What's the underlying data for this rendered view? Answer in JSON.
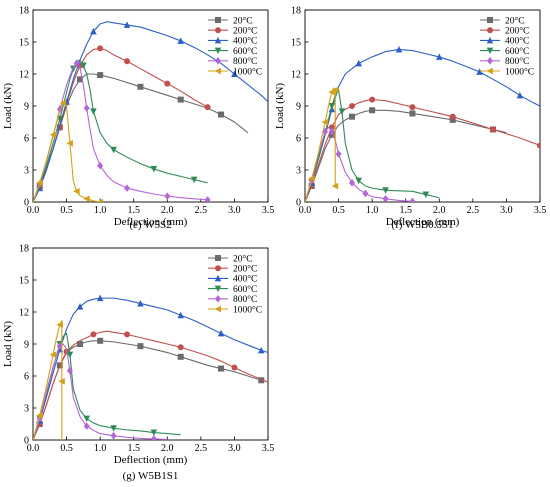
{
  "chart_data": [
    {
      "type": "line",
      "caption": "(e) W5S2",
      "xlabel": "Deflection (mm)",
      "ylabel": "Load (kN)",
      "xlim": [
        0,
        3.5
      ],
      "ylim": [
        0,
        18
      ],
      "xticks": [
        "0.0",
        "0.5",
        "1.0",
        "1.5",
        "2.0",
        "2.5",
        "3.0",
        "3.5"
      ],
      "yticks": [
        "0",
        "3",
        "6",
        "9",
        "12",
        "15",
        "18"
      ],
      "legend_position": "top-right",
      "series": [
        {
          "name": "20°C",
          "color": "#6b6b6b",
          "marker": "square",
          "x": [
            0,
            0.1,
            0.2,
            0.3,
            0.4,
            0.5,
            0.6,
            0.7,
            0.8,
            0.9,
            1.0,
            1.2,
            1.4,
            1.6,
            1.8,
            2.0,
            2.2,
            2.4,
            2.6,
            2.8,
            3.0,
            3.2
          ],
          "y": [
            0,
            1.5,
            3.2,
            5.0,
            7.0,
            9.0,
            10.5,
            11.5,
            12.0,
            12.0,
            11.9,
            11.6,
            11.2,
            10.8,
            10.4,
            10.0,
            9.6,
            9.2,
            8.8,
            8.2,
            7.5,
            6.5
          ]
        },
        {
          "name": "200°C",
          "color": "#c0504d",
          "marker": "circle",
          "x": [
            0,
            0.1,
            0.2,
            0.3,
            0.4,
            0.5,
            0.6,
            0.7,
            0.8,
            0.9,
            1.0,
            1.1,
            1.2,
            1.4,
            1.6,
            1.8,
            2.0,
            2.2,
            2.4,
            2.6
          ],
          "y": [
            0,
            1.3,
            3.0,
            5.0,
            7.0,
            9.2,
            11.2,
            12.8,
            13.8,
            14.3,
            14.4,
            14.2,
            13.8,
            13.2,
            12.5,
            11.8,
            11.1,
            10.4,
            9.6,
            8.9
          ]
        },
        {
          "name": "400°C",
          "color": "#2e5fc9",
          "marker": "triangle-up",
          "x": [
            0,
            0.1,
            0.2,
            0.3,
            0.4,
            0.5,
            0.6,
            0.7,
            0.8,
            0.9,
            1.0,
            1.1,
            1.2,
            1.4,
            1.6,
            1.8,
            2.0,
            2.2,
            2.4,
            2.6,
            2.8,
            3.0,
            3.2,
            3.4,
            3.5
          ],
          "y": [
            0,
            1.3,
            3.0,
            5.0,
            7.2,
            9.4,
            11.5,
            13.3,
            14.8,
            16.0,
            16.7,
            16.9,
            16.8,
            16.6,
            16.4,
            16.0,
            15.6,
            15.1,
            14.5,
            13.8,
            13.0,
            12.0,
            11.0,
            10.0,
            9.4
          ]
        },
        {
          "name": "600°C",
          "color": "#2e8b57",
          "marker": "triangle-down",
          "x": [
            0,
            0.1,
            0.2,
            0.3,
            0.4,
            0.5,
            0.55,
            0.6,
            0.65,
            0.7,
            0.75,
            0.8,
            0.85,
            0.9,
            1.0,
            1.1,
            1.2,
            1.4,
            1.6,
            1.8,
            2.0,
            2.2,
            2.4,
            2.6
          ],
          "y": [
            0,
            1.5,
            3.4,
            5.5,
            7.8,
            10.3,
            11.5,
            12.5,
            13.2,
            13.3,
            12.8,
            12.0,
            10.5,
            8.5,
            6.5,
            5.5,
            4.9,
            4.2,
            3.6,
            3.1,
            2.7,
            2.4,
            2.1,
            1.8
          ]
        },
        {
          "name": "800°C",
          "color": "#b566d6",
          "marker": "diamond",
          "x": [
            0,
            0.1,
            0.2,
            0.3,
            0.4,
            0.5,
            0.6,
            0.65,
            0.7,
            0.75,
            0.8,
            0.85,
            0.9,
            1.0,
            1.1,
            1.2,
            1.4,
            1.6,
            1.8,
            2.0,
            2.2,
            2.4,
            2.6
          ],
          "y": [
            0,
            1.7,
            3.8,
            6.2,
            8.7,
            11.0,
            12.6,
            13.0,
            12.6,
            11.0,
            8.8,
            6.8,
            5.0,
            3.4,
            2.5,
            1.9,
            1.3,
            1.0,
            0.75,
            0.55,
            0.4,
            0.3,
            0.2
          ]
        },
        {
          "name": "1000°C",
          "color": "#d4a017",
          "marker": "triangle-left",
          "x": [
            0,
            0.1,
            0.2,
            0.3,
            0.4,
            0.45,
            0.5,
            0.55,
            0.6,
            0.65,
            0.7,
            0.8,
            0.9,
            1.0
          ],
          "y": [
            0,
            1.8,
            3.9,
            6.3,
            8.5,
            9.3,
            9.0,
            5.5,
            2.0,
            1.0,
            0.6,
            0.3,
            0.1,
            0.0
          ]
        }
      ]
    },
    {
      "type": "line",
      "caption": "(f) W5B0.5S1",
      "xlabel": "Deflection (mm)",
      "ylabel": "Load (kN)",
      "xlim": [
        0,
        3.5
      ],
      "ylim": [
        0,
        18
      ],
      "xticks": [
        "0.0",
        "0.5",
        "1.0",
        "1.5",
        "2.0",
        "2.5",
        "3.0",
        "3.5"
      ],
      "yticks": [
        "0",
        "3",
        "6",
        "9",
        "12",
        "15",
        "18"
      ],
      "legend_position": "top-right",
      "series": [
        {
          "name": "20°C",
          "color": "#6b6b6b",
          "marker": "square",
          "x": [
            0,
            0.1,
            0.2,
            0.3,
            0.4,
            0.5,
            0.6,
            0.7,
            0.8,
            0.9,
            1.0,
            1.2,
            1.4,
            1.6,
            1.8,
            2.0,
            2.2,
            2.4,
            2.6,
            2.8,
            3.0
          ],
          "y": [
            0,
            1.5,
            3.2,
            5.0,
            6.3,
            7.2,
            7.7,
            8.0,
            8.3,
            8.5,
            8.6,
            8.6,
            8.5,
            8.3,
            8.1,
            7.9,
            7.7,
            7.4,
            7.1,
            6.8,
            6.5
          ]
        },
        {
          "name": "200°C",
          "color": "#c0504d",
          "marker": "circle",
          "x": [
            0,
            0.1,
            0.2,
            0.3,
            0.4,
            0.5,
            0.6,
            0.7,
            0.8,
            0.9,
            1.0,
            1.2,
            1.4,
            1.6,
            1.8,
            2.0,
            2.2,
            2.4,
            2.6,
            2.8,
            3.0,
            3.2,
            3.5
          ],
          "y": [
            0,
            1.6,
            3.5,
            5.4,
            7.0,
            8.2,
            8.7,
            9.0,
            9.3,
            9.5,
            9.6,
            9.5,
            9.2,
            8.9,
            8.6,
            8.3,
            8.0,
            7.6,
            7.2,
            6.8,
            6.4,
            6.0,
            5.3
          ]
        },
        {
          "name": "400°C",
          "color": "#2e5fc9",
          "marker": "triangle-up",
          "x": [
            0,
            0.1,
            0.2,
            0.3,
            0.4,
            0.5,
            0.6,
            0.8,
            1.0,
            1.2,
            1.4,
            1.6,
            1.8,
            2.0,
            2.2,
            2.4,
            2.6,
            2.8,
            3.0,
            3.2,
            3.4,
            3.5
          ],
          "y": [
            0,
            1.8,
            4.0,
            6.3,
            8.7,
            10.8,
            12.0,
            13.0,
            13.6,
            14.1,
            14.3,
            14.2,
            13.9,
            13.6,
            13.2,
            12.7,
            12.2,
            11.5,
            10.8,
            10.0,
            9.3,
            9.0
          ]
        },
        {
          "name": "600°C",
          "color": "#2e8b57",
          "marker": "triangle-down",
          "x": [
            0,
            0.1,
            0.2,
            0.3,
            0.4,
            0.45,
            0.5,
            0.55,
            0.6,
            0.7,
            0.8,
            0.9,
            1.0,
            1.2,
            1.4,
            1.6,
            1.8,
            2.0
          ],
          "y": [
            0,
            1.9,
            4.2,
            6.5,
            9.0,
            10.0,
            10.5,
            8.5,
            5.5,
            3.0,
            2.0,
            1.5,
            1.3,
            1.1,
            1.05,
            1.0,
            0.7,
            0.4
          ]
        },
        {
          "name": "800°C",
          "color": "#b566d6",
          "marker": "diamond",
          "x": [
            0,
            0.1,
            0.2,
            0.3,
            0.35,
            0.4,
            0.45,
            0.5,
            0.6,
            0.7,
            0.8,
            0.9,
            1.0,
            1.2,
            1.4,
            1.6
          ],
          "y": [
            0,
            2.0,
            4.5,
            6.6,
            7.0,
            6.6,
            5.8,
            4.5,
            2.8,
            1.8,
            1.2,
            0.8,
            0.5,
            0.3,
            0.15,
            0.05
          ]
        },
        {
          "name": "1000°C",
          "color": "#d4a017",
          "marker": "triangle-left",
          "x": [
            0,
            0.1,
            0.2,
            0.3,
            0.35,
            0.4,
            0.43,
            0.45,
            0.45,
            0.45
          ],
          "y": [
            0,
            2.2,
            4.6,
            7.5,
            9.0,
            10.3,
            10.7,
            10.5,
            6.0,
            1.5
          ]
        }
      ]
    },
    {
      "type": "line",
      "caption": "(g) W5B1S1",
      "xlabel": "Deflection (mm)",
      "ylabel": "Load (kN)",
      "xlim": [
        0,
        3.5
      ],
      "ylim": [
        0,
        18
      ],
      "xticks": [
        "0.0",
        "0.5",
        "1.0",
        "1.5",
        "2.0",
        "2.5",
        "3.0",
        "3.5"
      ],
      "yticks": [
        "0",
        "3",
        "6",
        "9",
        "12",
        "15",
        "18"
      ],
      "legend_position": "top-right",
      "series": [
        {
          "name": "20°C",
          "color": "#6b6b6b",
          "marker": "square",
          "x": [
            0,
            0.1,
            0.2,
            0.3,
            0.4,
            0.5,
            0.6,
            0.7,
            0.8,
            0.9,
            1.0,
            1.2,
            1.4,
            1.6,
            1.8,
            2.0,
            2.2,
            2.4,
            2.6,
            2.8,
            3.0,
            3.2,
            3.4
          ],
          "y": [
            0,
            1.5,
            3.3,
            5.3,
            7.0,
            8.2,
            8.7,
            9.0,
            9.2,
            9.3,
            9.3,
            9.2,
            9.0,
            8.8,
            8.5,
            8.2,
            7.8,
            7.4,
            7.0,
            6.7,
            6.4,
            6.0,
            5.6
          ]
        },
        {
          "name": "200°C",
          "color": "#c0504d",
          "marker": "circle",
          "x": [
            0,
            0.1,
            0.2,
            0.3,
            0.4,
            0.5,
            0.6,
            0.7,
            0.8,
            0.9,
            1.0,
            1.1,
            1.2,
            1.4,
            1.6,
            1.8,
            2.0,
            2.2,
            2.4,
            2.6,
            2.8,
            3.0,
            3.2,
            3.4,
            3.5
          ],
          "y": [
            0,
            1.5,
            3.3,
            5.3,
            7.0,
            8.3,
            8.9,
            9.3,
            9.6,
            9.9,
            10.1,
            10.2,
            10.1,
            9.9,
            9.6,
            9.3,
            9.0,
            8.7,
            8.3,
            7.9,
            7.4,
            6.8,
            6.2,
            5.7,
            5.4
          ]
        },
        {
          "name": "400°C",
          "color": "#2e5fc9",
          "marker": "triangle-up",
          "x": [
            0,
            0.1,
            0.2,
            0.3,
            0.4,
            0.5,
            0.6,
            0.7,
            0.8,
            0.9,
            1.0,
            1.2,
            1.4,
            1.6,
            1.8,
            2.0,
            2.2,
            2.4,
            2.6,
            2.8,
            3.0,
            3.2,
            3.4,
            3.5
          ],
          "y": [
            0,
            1.8,
            4.0,
            6.3,
            8.5,
            10.4,
            11.8,
            12.5,
            13.0,
            13.2,
            13.3,
            13.3,
            13.1,
            12.8,
            12.5,
            12.2,
            11.7,
            11.2,
            10.6,
            10.0,
            9.4,
            8.9,
            8.4,
            8.2
          ]
        },
        {
          "name": "600°C",
          "color": "#2e8b57",
          "marker": "triangle-down",
          "x": [
            0,
            0.1,
            0.2,
            0.3,
            0.4,
            0.45,
            0.5,
            0.55,
            0.6,
            0.7,
            0.8,
            0.9,
            1.0,
            1.2,
            1.4,
            1.6,
            1.8,
            2.0,
            2.2
          ],
          "y": [
            0,
            2.0,
            4.3,
            6.8,
            9.0,
            9.7,
            10.0,
            8.0,
            4.8,
            2.8,
            2.0,
            1.6,
            1.35,
            1.1,
            0.95,
            0.85,
            0.7,
            0.6,
            0.5
          ]
        },
        {
          "name": "800°C",
          "color": "#b566d6",
          "marker": "diamond",
          "x": [
            0,
            0.1,
            0.2,
            0.3,
            0.4,
            0.45,
            0.5,
            0.55,
            0.6,
            0.7,
            0.8,
            0.9,
            1.0,
            1.2,
            1.4,
            1.6,
            1.8,
            2.0
          ],
          "y": [
            0,
            2.0,
            4.5,
            6.9,
            8.8,
            9.0,
            8.5,
            6.5,
            4.0,
            2.2,
            1.3,
            0.9,
            0.6,
            0.4,
            0.25,
            0.15,
            0.1,
            0.05
          ]
        },
        {
          "name": "1000°C",
          "color": "#d4a017",
          "marker": "triangle-left",
          "x": [
            0,
            0.1,
            0.2,
            0.3,
            0.35,
            0.4,
            0.43,
            0.43,
            0.43
          ],
          "y": [
            0,
            2.3,
            5.0,
            8.0,
            9.6,
            10.8,
            11.2,
            5.5,
            0.0
          ]
        }
      ]
    }
  ]
}
